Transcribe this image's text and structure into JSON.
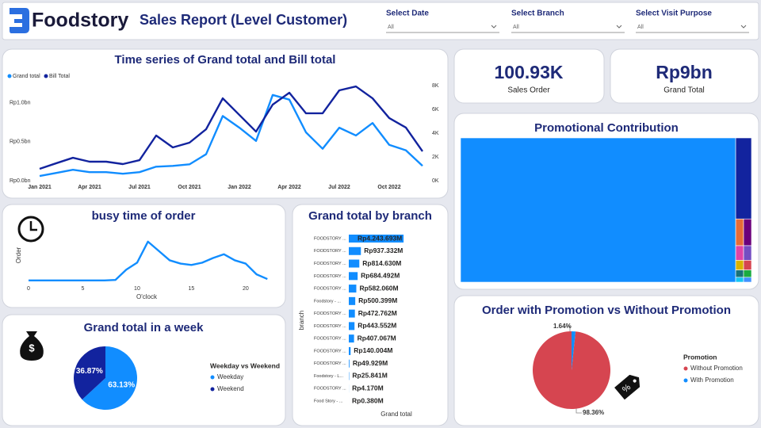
{
  "header": {
    "brand": "Foodstory",
    "title": "Sales Report (Level Customer)"
  },
  "filters": [
    {
      "label": "Select Date",
      "value": "All"
    },
    {
      "label": "Select Branch",
      "value": "All"
    },
    {
      "label": "Select Visit Purpose",
      "value": "All"
    }
  ],
  "cards": [
    {
      "value": "100.93K",
      "label": "Sales Order"
    },
    {
      "value": "Rp9bn",
      "label": "Grand Total"
    }
  ],
  "chart_data": [
    {
      "type": "line",
      "title": "Time series of Grand total and Bill total",
      "categories": [
        "Jan 2021",
        null,
        null,
        "Apr 2021",
        null,
        null,
        "Jul 2021",
        null,
        null,
        "Oct 2021",
        null,
        null,
        "Jan 2022",
        null,
        null,
        "Apr 2022",
        null,
        null,
        "Jul 2022",
        null,
        null,
        "Oct 2022",
        null,
        null
      ],
      "ylim": [
        0,
        1.22
      ],
      "yticks": [
        {
          "value": 0,
          "label": "Rp0.0bn"
        },
        {
          "value": 0.5,
          "label": "Rp0.5bn"
        },
        {
          "value": 1.0,
          "label": "Rp1.0bn"
        }
      ],
      "y2lim": [
        0,
        8000
      ],
      "y2ticks": [
        {
          "value": 0,
          "label": "0K"
        },
        {
          "value": 2000,
          "label": "2K"
        },
        {
          "value": 4000,
          "label": "4K"
        },
        {
          "value": 6000,
          "label": "6K"
        },
        {
          "value": 8000,
          "label": "8K"
        }
      ],
      "legend": "top-left",
      "series": [
        {
          "name": "Grand total",
          "color": "#118dff",
          "values": [
            0.06,
            0.1,
            0.14,
            0.11,
            0.11,
            0.09,
            0.11,
            0.18,
            0.19,
            0.21,
            0.34,
            0.83,
            0.68,
            0.51,
            1.1,
            1.04,
            0.62,
            0.41,
            0.68,
            0.58,
            0.74,
            0.46,
            0.39,
            0.19
          ]
        },
        {
          "name": "Bill Total",
          "color": "#12239e",
          "axis": "y2",
          "values": [
            1000,
            1470,
            1930,
            1600,
            1600,
            1400,
            1730,
            3800,
            2800,
            3200,
            4330,
            6930,
            5530,
            4130,
            6400,
            7400,
            5670,
            5670,
            7600,
            7930,
            6930,
            5270,
            4470,
            2470
          ]
        }
      ]
    },
    {
      "type": "line",
      "title": "busy time of order",
      "x_label": "O'clock",
      "y_label": "Order",
      "x": [
        0,
        1,
        2,
        3,
        4,
        5,
        6,
        7,
        8,
        9,
        10,
        11,
        12,
        13,
        14,
        15,
        16,
        17,
        18,
        19,
        20,
        21,
        22
      ],
      "xlim": [
        0,
        23
      ],
      "xticks": [
        0,
        5,
        10,
        15,
        20
      ],
      "ylim": [
        0,
        100
      ],
      "series": [
        {
          "color": "#118dff",
          "values": [
            2,
            2,
            2,
            2,
            2,
            2,
            2,
            2,
            3,
            25,
            40,
            85,
            65,
            45,
            38,
            35,
            40,
            50,
            58,
            45,
            38,
            15,
            5
          ]
        }
      ]
    },
    {
      "type": "pie",
      "title": "Grand total in a week",
      "legend_title": "Weekday vs Weekend",
      "categories": [
        "Weekday",
        "Weekend"
      ],
      "values": [
        63.13,
        36.87
      ],
      "value_labels": [
        "63.13%",
        "36.87%"
      ],
      "colors": [
        "#118dff",
        "#12239e"
      ]
    },
    {
      "type": "bar",
      "title": "Grand total by branch",
      "x_label": "Grand total",
      "y_label": "branch",
      "orientation": "horizontal",
      "color": "#118dff",
      "categories": [
        "FOODSTORY ...",
        "FOODSTORY ...",
        "FOODSTORY ...",
        "FOODSTORY ...",
        "FOODSTORY ...",
        "Foodstory - ...",
        "FOODSTORY ...",
        "FOODSTORY ...",
        "FOODSTORY ...",
        "FOODSTORY ...",
        "FOODSTORY ...",
        "Foodstory - L...",
        "FOODSTORY ...",
        "Food Story - ..."
      ],
      "values": [
        4243.693,
        937.332,
        814.63,
        684.492,
        582.06,
        500.399,
        472.762,
        443.552,
        407.067,
        140.004,
        49.929,
        25.841,
        4.17,
        0.38
      ],
      "value_labels": [
        "Rp4.243.693M",
        "Rp937.332M",
        "Rp814.630M",
        "Rp684.492M",
        "Rp582.060M",
        "Rp500.399M",
        "Rp472.762M",
        "Rp443.552M",
        "Rp407.067M",
        "Rp140.004M",
        "Rp49.929M",
        "Rp25.841M",
        "Rp4.170M",
        "Rp0.380M"
      ],
      "xlim": [
        0,
        4300
      ]
    },
    {
      "type": "treemap",
      "title": "Promotional Contribution",
      "values": [
        62000,
        2000,
        330,
        330,
        180,
        180,
        120,
        120,
        90,
        90,
        60,
        60
      ],
      "colors": [
        "#118dff",
        "#12239e",
        "#e66c37",
        "#6b007b",
        "#e044a7",
        "#744ec2",
        "#d9b300",
        "#d64550",
        "#197278",
        "#1aab40",
        "#15c6f4",
        "#4092ff"
      ]
    },
    {
      "type": "pie",
      "title": "Order with Promotion vs Without Promotion",
      "legend_title": "Promotion",
      "start": "last",
      "categories": [
        "Without Promotion",
        "With Promotion"
      ],
      "values": [
        98.36,
        1.64
      ],
      "value_labels": [
        "98.36%",
        "1.64%"
      ],
      "colors": [
        "#d64550",
        "#118dff"
      ]
    }
  ]
}
